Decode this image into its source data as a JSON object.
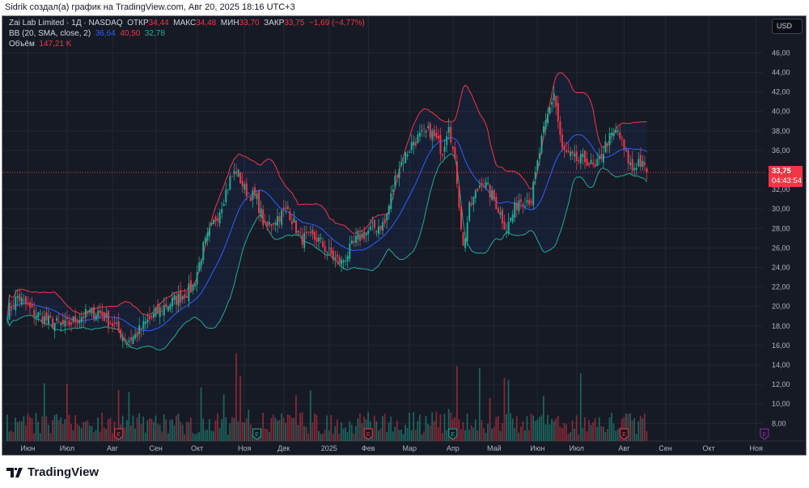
{
  "caption": "Sidrik создал(а) график на TradingView.com, Авг 20, 2025 18:16 UTC+3",
  "legend": {
    "symbol": "Zai Lab Limited · 1Д · NASDAQ",
    "open_label": "ОТКР",
    "open": "34,44",
    "high_label": "МАКС",
    "high": "34,48",
    "low_label": "МИН",
    "low": "33,70",
    "close_label": "ЗАКР",
    "close": "33,75",
    "change": "−1,69 (−4,77%)",
    "bb_label": "BB (20, SMA, close, 2)",
    "bb_basis": "36,64",
    "bb_upper": "40,50",
    "bb_lower": "32,78",
    "volume_label": "Объём",
    "volume": "147,21 K"
  },
  "currency": "USD",
  "last_price": {
    "price": "33,75",
    "countdown": "04:43:54"
  },
  "brand": "TradingView",
  "colors": {
    "up": "#22ab94",
    "down": "#f23645",
    "basis": "#2962ff",
    "bg": "#161a25"
  },
  "chart_data": {
    "type": "candlestick",
    "title": "Zai Lab Limited · 1Д · NASDAQ",
    "ylim": [
      7,
      48
    ],
    "y_ticks": [
      "46,00",
      "44,00",
      "42,00",
      "40,00",
      "38,00",
      "36,00",
      "32,00",
      "30,00",
      "28,00",
      "26,00",
      "24,00",
      "22,00",
      "20,00",
      "18,00",
      "16,00",
      "14,00",
      "12,00",
      "10,00",
      "8,00"
    ],
    "y_tick_values": [
      46,
      44,
      42,
      40,
      38,
      36,
      32,
      30,
      28,
      26,
      24,
      22,
      20,
      18,
      16,
      14,
      12,
      10,
      8
    ],
    "x_ticks": [
      "Июн",
      "Июл",
      "Авг",
      "Сен",
      "Окт",
      "Ноя",
      "Дек",
      "2025",
      "Фев",
      "Мар",
      "Апр",
      "Май",
      "Июн",
      "Июл",
      "Авг",
      "Сен",
      "Окт",
      "Ноя"
    ],
    "x_tick_day_index": [
      10,
      29,
      51,
      72,
      92,
      115,
      134,
      156,
      175,
      195,
      216,
      236,
      257,
      276,
      299,
      319,
      340,
      363
    ],
    "close_anchors": [
      [
        0,
        19.5
      ],
      [
        5,
        21
      ],
      [
        12,
        19.5
      ],
      [
        20,
        18.5
      ],
      [
        28,
        18
      ],
      [
        36,
        19
      ],
      [
        44,
        19.5
      ],
      [
        52,
        18
      ],
      [
        58,
        16.5
      ],
      [
        62,
        17
      ],
      [
        68,
        18.5
      ],
      [
        76,
        20
      ],
      [
        84,
        21
      ],
      [
        90,
        22
      ],
      [
        95,
        26
      ],
      [
        103,
        30
      ],
      [
        108,
        33
      ],
      [
        111,
        34
      ],
      [
        115,
        32
      ],
      [
        121,
        31
      ],
      [
        125,
        28
      ],
      [
        130,
        29
      ],
      [
        136,
        30
      ],
      [
        142,
        27
      ],
      [
        150,
        27
      ],
      [
        158,
        25
      ],
      [
        162,
        24.5
      ],
      [
        170,
        27
      ],
      [
        177,
        28
      ],
      [
        183,
        28.5
      ],
      [
        189,
        34
      ],
      [
        197,
        37
      ],
      [
        205,
        38
      ],
      [
        211,
        36
      ],
      [
        214,
        39
      ],
      [
        218,
        33
      ],
      [
        221,
        26
      ],
      [
        224,
        30
      ],
      [
        230,
        33
      ],
      [
        236,
        31
      ],
      [
        242,
        28
      ],
      [
        248,
        31
      ],
      [
        254,
        31
      ],
      [
        259,
        37
      ],
      [
        265,
        42
      ],
      [
        269,
        36
      ],
      [
        275,
        35
      ],
      [
        281,
        35
      ],
      [
        285,
        34
      ],
      [
        291,
        37
      ],
      [
        296,
        38
      ],
      [
        299,
        36
      ],
      [
        303,
        34
      ],
      [
        306,
        35
      ],
      [
        310,
        33.75
      ]
    ],
    "earnings_markers": [
      {
        "day_index": 54,
        "type": "E",
        "color": "#f23645"
      },
      {
        "day_index": 121,
        "type": "E",
        "color": "#22ab94"
      },
      {
        "day_index": 175,
        "type": "E",
        "color": "#f23645"
      },
      {
        "day_index": 216,
        "type": "E",
        "color": "#22ab94"
      },
      {
        "day_index": 299,
        "type": "E",
        "color": "#f23645"
      },
      {
        "day_index": 367,
        "type": "E",
        "color": "#9c27b0"
      }
    ],
    "indicators": [
      "Bollinger Bands (20, SMA, close, 2)",
      "Volume"
    ]
  }
}
